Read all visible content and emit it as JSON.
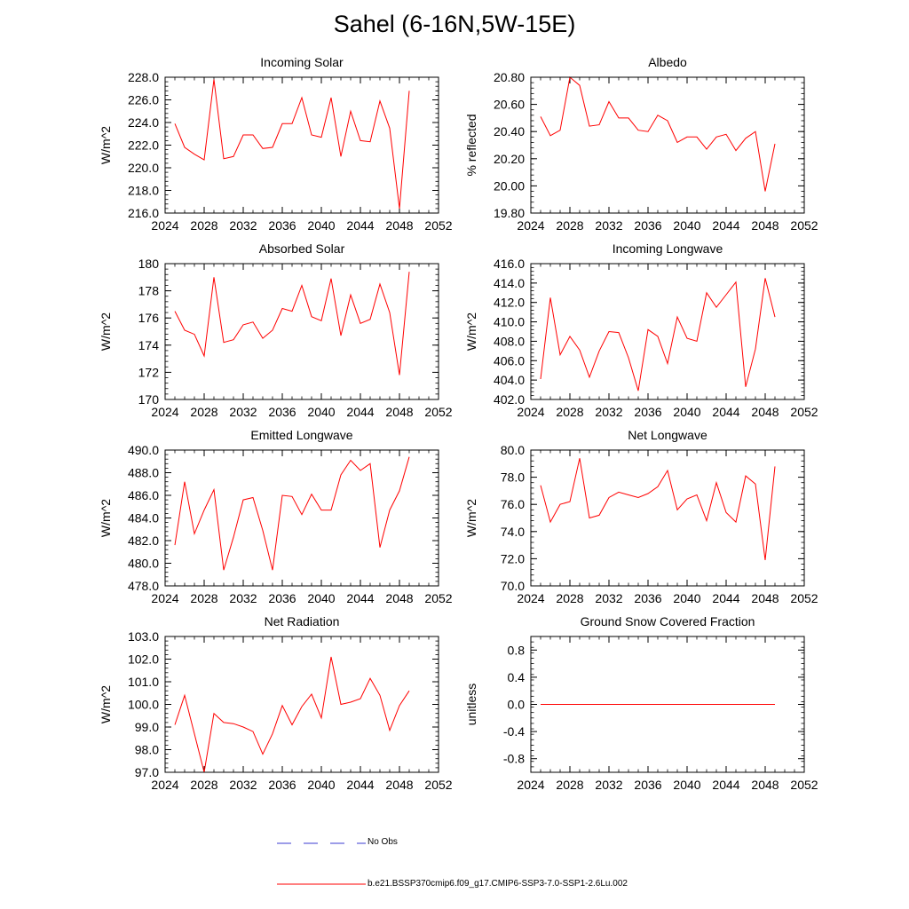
{
  "title": "Sahel (6-16N,5W-15E)",
  "legend": {
    "obs_label": "No Obs",
    "model_label": "b.e21.BSSP370cmip6.f09_g17.CMIP6-SSP3-7.0-SSP1-2.6Lu.002",
    "obs_color": "#3b3bd0",
    "model_color": "#ff0000"
  },
  "chart_data": [
    {
      "type": "line",
      "title": "Incoming Solar",
      "ylabel": "W/m^2",
      "xlim": [
        2024,
        2052
      ],
      "ylim": [
        216,
        228
      ],
      "xticks": [
        2024,
        2028,
        2032,
        2036,
        2040,
        2044,
        2048,
        2052
      ],
      "yticks": [
        "216.0",
        "218.0",
        "220.0",
        "222.0",
        "224.0",
        "226.0",
        "228.0"
      ],
      "series": [
        {
          "color": "#ff0000",
          "x": [
            2025,
            2026,
            2027,
            2028,
            2029,
            2030,
            2031,
            2032,
            2033,
            2034,
            2035,
            2036,
            2037,
            2038,
            2039,
            2040,
            2041,
            2042,
            2043,
            2044,
            2045,
            2046,
            2047,
            2048,
            2049
          ],
          "values": [
            223.9,
            221.8,
            221.2,
            220.7,
            227.8,
            220.8,
            221.0,
            222.9,
            222.9,
            221.7,
            221.8,
            223.9,
            223.9,
            226.2,
            222.9,
            222.7,
            226.2,
            221.0,
            225.0,
            222.4,
            222.3,
            225.9,
            223.5,
            216.4,
            226.8
          ]
        }
      ]
    },
    {
      "type": "line",
      "title": "Albedo",
      "ylabel": "% reflected",
      "xlim": [
        2024,
        2052
      ],
      "ylim": [
        19.8,
        20.8
      ],
      "xticks": [
        2024,
        2028,
        2032,
        2036,
        2040,
        2044,
        2048,
        2052
      ],
      "yticks": [
        "19.80",
        "20.00",
        "20.20",
        "20.40",
        "20.60",
        "20.80"
      ],
      "series": [
        {
          "color": "#ff0000",
          "x": [
            2025,
            2026,
            2027,
            2028,
            2029,
            2030,
            2031,
            2032,
            2033,
            2034,
            2035,
            2036,
            2037,
            2038,
            2039,
            2040,
            2041,
            2042,
            2043,
            2044,
            2045,
            2046,
            2047,
            2048,
            2049
          ],
          "values": [
            20.51,
            20.37,
            20.41,
            20.8,
            20.74,
            20.44,
            20.45,
            20.62,
            20.5,
            20.5,
            20.41,
            20.4,
            20.52,
            20.48,
            20.32,
            20.36,
            20.36,
            20.27,
            20.36,
            20.38,
            20.26,
            20.35,
            20.4,
            19.96,
            20.31
          ]
        }
      ]
    },
    {
      "type": "line",
      "title": "Absorbed Solar",
      "ylabel": "W/m^2",
      "xlim": [
        2024,
        2052
      ],
      "ylim": [
        170,
        180
      ],
      "xticks": [
        2024,
        2028,
        2032,
        2036,
        2040,
        2044,
        2048,
        2052
      ],
      "yticks": [
        "170",
        "172",
        "174",
        "176",
        "178",
        "180"
      ],
      "series": [
        {
          "color": "#ff0000",
          "x": [
            2025,
            2026,
            2027,
            2028,
            2029,
            2030,
            2031,
            2032,
            2033,
            2034,
            2035,
            2036,
            2037,
            2038,
            2039,
            2040,
            2041,
            2042,
            2043,
            2044,
            2045,
            2046,
            2047,
            2048,
            2049
          ],
          "values": [
            176.5,
            175.1,
            174.8,
            173.2,
            179.0,
            174.2,
            174.4,
            175.5,
            175.7,
            174.5,
            175.1,
            176.7,
            176.5,
            178.4,
            176.1,
            175.8,
            178.9,
            174.7,
            177.7,
            175.6,
            175.9,
            178.5,
            176.4,
            171.8,
            179.4
          ]
        }
      ]
    },
    {
      "type": "line",
      "title": "Incoming Longwave",
      "ylabel": "W/m^2",
      "xlim": [
        2024,
        2052
      ],
      "ylim": [
        402,
        416
      ],
      "xticks": [
        2024,
        2028,
        2032,
        2036,
        2040,
        2044,
        2048,
        2052
      ],
      "yticks": [
        "402.0",
        "404.0",
        "406.0",
        "408.0",
        "410.0",
        "412.0",
        "414.0",
        "416.0"
      ],
      "series": [
        {
          "color": "#ff0000",
          "x": [
            2025,
            2026,
            2027,
            2028,
            2029,
            2030,
            2031,
            2032,
            2033,
            2034,
            2035,
            2036,
            2037,
            2038,
            2039,
            2040,
            2041,
            2042,
            2043,
            2044,
            2045,
            2046,
            2047,
            2048,
            2049
          ],
          "values": [
            404.1,
            412.5,
            406.6,
            408.5,
            407.1,
            404.3,
            407.0,
            409.0,
            408.9,
            406.3,
            402.9,
            409.2,
            408.5,
            405.7,
            410.5,
            408.3,
            408.0,
            413.0,
            411.5,
            412.8,
            414.1,
            403.3,
            407.2,
            414.5,
            410.5
          ]
        }
      ]
    },
    {
      "type": "line",
      "title": "Emitted Longwave",
      "ylabel": "W/m^2",
      "xlim": [
        2024,
        2052
      ],
      "ylim": [
        478,
        490
      ],
      "xticks": [
        2024,
        2028,
        2032,
        2036,
        2040,
        2044,
        2048,
        2052
      ],
      "yticks": [
        "478.0",
        "480.0",
        "482.0",
        "484.0",
        "486.0",
        "488.0",
        "490.0"
      ],
      "series": [
        {
          "color": "#ff0000",
          "x": [
            2025,
            2026,
            2027,
            2028,
            2029,
            2030,
            2031,
            2032,
            2033,
            2034,
            2035,
            2036,
            2037,
            2038,
            2039,
            2040,
            2041,
            2042,
            2043,
            2044,
            2045,
            2046,
            2047,
            2048,
            2049
          ],
          "values": [
            481.6,
            487.2,
            482.6,
            484.7,
            486.5,
            479.4,
            482.3,
            485.6,
            485.8,
            482.9,
            479.4,
            486.0,
            485.9,
            484.3,
            486.1,
            484.7,
            484.7,
            487.8,
            489.1,
            488.2,
            488.8,
            481.4,
            484.7,
            486.4,
            489.4
          ]
        }
      ]
    },
    {
      "type": "line",
      "title": "Net Longwave",
      "ylabel": "W/m^2",
      "xlim": [
        2024,
        2052
      ],
      "ylim": [
        70,
        80
      ],
      "xticks": [
        2024,
        2028,
        2032,
        2036,
        2040,
        2044,
        2048,
        2052
      ],
      "yticks": [
        "70.0",
        "72.0",
        "74.0",
        "76.0",
        "78.0",
        "80.0"
      ],
      "series": [
        {
          "color": "#ff0000",
          "x": [
            2025,
            2026,
            2027,
            2028,
            2029,
            2030,
            2031,
            2032,
            2033,
            2034,
            2035,
            2036,
            2037,
            2038,
            2039,
            2040,
            2041,
            2042,
            2043,
            2044,
            2045,
            2046,
            2047,
            2048,
            2049
          ],
          "values": [
            77.4,
            74.7,
            76.0,
            76.2,
            79.4,
            75.0,
            75.2,
            76.5,
            76.9,
            76.7,
            76.5,
            76.8,
            77.3,
            78.5,
            75.6,
            76.4,
            76.7,
            74.8,
            77.6,
            75.4,
            74.7,
            78.1,
            77.5,
            71.9,
            78.8
          ]
        }
      ]
    },
    {
      "type": "line",
      "title": "Net Radiation",
      "ylabel": "W/m^2",
      "xlim": [
        2024,
        2052
      ],
      "ylim": [
        97,
        103
      ],
      "xticks": [
        2024,
        2028,
        2032,
        2036,
        2040,
        2044,
        2048,
        2052
      ],
      "yticks": [
        "97.0",
        "98.0",
        "99.0",
        "100.0",
        "101.0",
        "102.0",
        "103.0"
      ],
      "series": [
        {
          "color": "#ff0000",
          "x": [
            2025,
            2026,
            2027,
            2028,
            2029,
            2030,
            2031,
            2032,
            2033,
            2034,
            2035,
            2036,
            2037,
            2038,
            2039,
            2040,
            2041,
            2042,
            2043,
            2044,
            2045,
            2046,
            2047,
            2048,
            2049
          ],
          "values": [
            99.1,
            100.4,
            98.7,
            97.0,
            99.6,
            99.2,
            99.15,
            99.0,
            98.8,
            97.8,
            98.7,
            99.95,
            99.1,
            99.9,
            100.45,
            99.4,
            102.1,
            100.0,
            100.1,
            100.25,
            101.15,
            100.4,
            98.85,
            99.95,
            100.6
          ]
        }
      ]
    },
    {
      "type": "line",
      "title": "Ground Snow Covered Fraction",
      "ylabel": "unitless",
      "xlim": [
        2024,
        2052
      ],
      "ylim": [
        -1,
        1
      ],
      "xticks": [
        2024,
        2028,
        2032,
        2036,
        2040,
        2044,
        2048,
        2052
      ],
      "yticks": [
        "-0.8",
        "-0.4",
        "0.0",
        "0.4",
        "0.8"
      ],
      "ytick_values": [
        -0.8,
        -0.4,
        0.0,
        0.4,
        0.8
      ],
      "series": [
        {
          "color": "#ff0000",
          "x": [
            2025,
            2026,
            2027,
            2028,
            2029,
            2030,
            2031,
            2032,
            2033,
            2034,
            2035,
            2036,
            2037,
            2038,
            2039,
            2040,
            2041,
            2042,
            2043,
            2044,
            2045,
            2046,
            2047,
            2048,
            2049
          ],
          "values": [
            0,
            0,
            0,
            0,
            0,
            0,
            0,
            0,
            0,
            0,
            0,
            0,
            0,
            0,
            0,
            0,
            0,
            0,
            0,
            0,
            0,
            0,
            0,
            0,
            0
          ]
        }
      ]
    }
  ]
}
